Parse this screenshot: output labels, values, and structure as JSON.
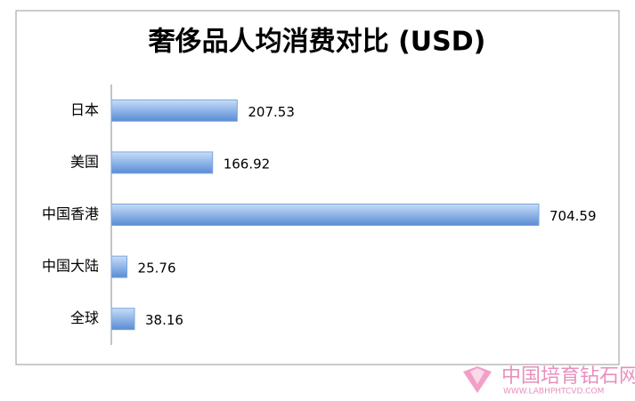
{
  "chart_data": {
    "type": "bar",
    "orientation": "horizontal",
    "title": "奢侈品人均消费对比 (USD)",
    "categories": [
      "日本",
      "美国",
      "中国香港",
      "中国大陆",
      "全球"
    ],
    "values": [
      207.53,
      166.92,
      704.59,
      25.76,
      38.16
    ],
    "color": "#7aa6e0",
    "xlim": [
      0,
      800
    ]
  },
  "watermark": {
    "name": "中国培育钻石网",
    "url": "WWW.LABHPHTCVD.COM"
  }
}
